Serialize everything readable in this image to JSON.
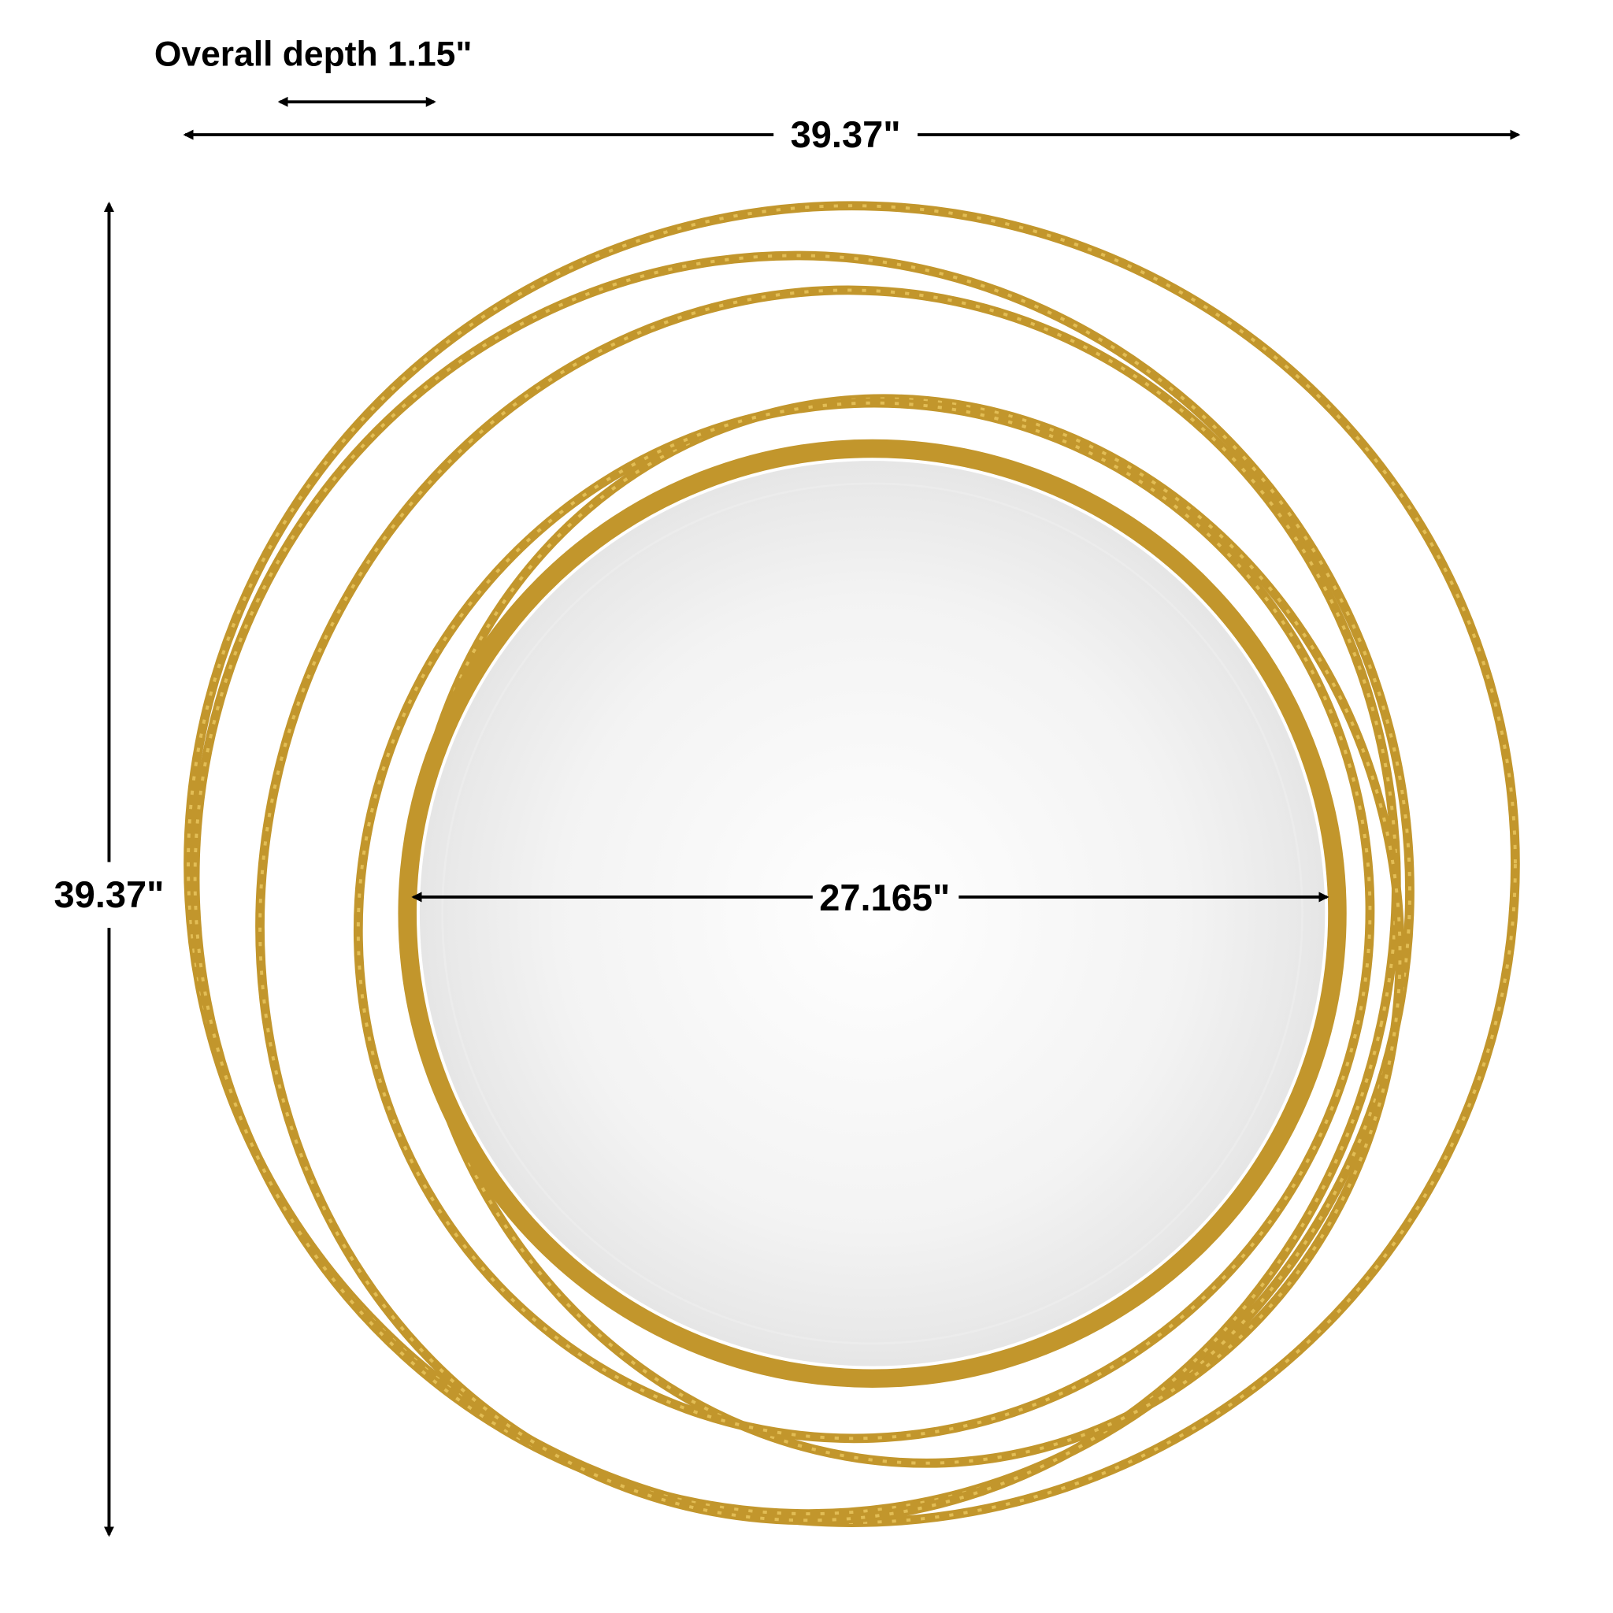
{
  "labels": {
    "depth": "Overall depth 1.15\"",
    "width": "39.37\"",
    "height": "39.37\"",
    "mirror_diameter": "27.165\""
  },
  "colors": {
    "frame_gold": "#c2962c",
    "frame_highlight": "#e2bd55",
    "mirror": "#f4f4f4",
    "dimension_lines": "#000000"
  }
}
